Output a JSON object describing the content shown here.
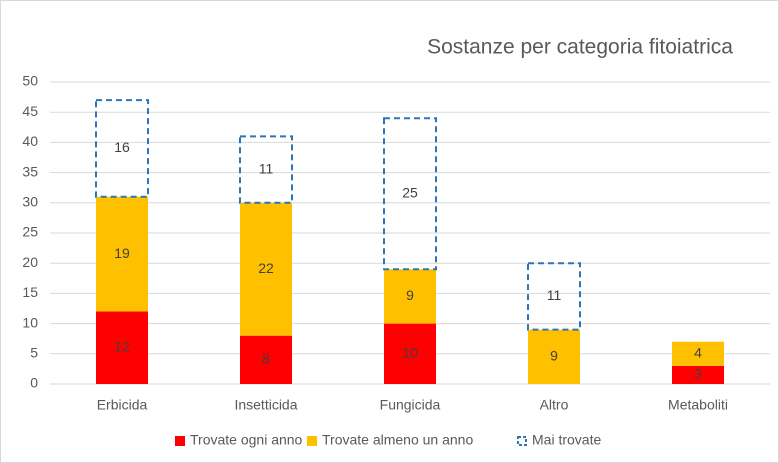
{
  "chart_data": {
    "type": "stacked_bar",
    "title": "Sostanze per categoria fitoiatrica",
    "categories": [
      "Erbicida",
      "Insetticida",
      "Fungicida",
      "Altro",
      "Metaboliti"
    ],
    "series": [
      {
        "name": "Trovate ogni anno",
        "color": "#ff0000",
        "style": "solid",
        "values": [
          12,
          8,
          10,
          null,
          3
        ]
      },
      {
        "name": "Trovate almeno un anno",
        "color": "#ffc000",
        "style": "solid",
        "values": [
          19,
          22,
          9,
          9,
          4
        ]
      },
      {
        "name": "Mai trovate",
        "color": "#2e75b6",
        "style": "dashed",
        "values": [
          16,
          11,
          25,
          11,
          null
        ]
      }
    ],
    "ylim": [
      0,
      50
    ],
    "yticks": [
      0,
      5,
      10,
      15,
      20,
      25,
      30,
      35,
      40,
      45,
      50
    ],
    "grid": true,
    "legend": "bottom"
  }
}
